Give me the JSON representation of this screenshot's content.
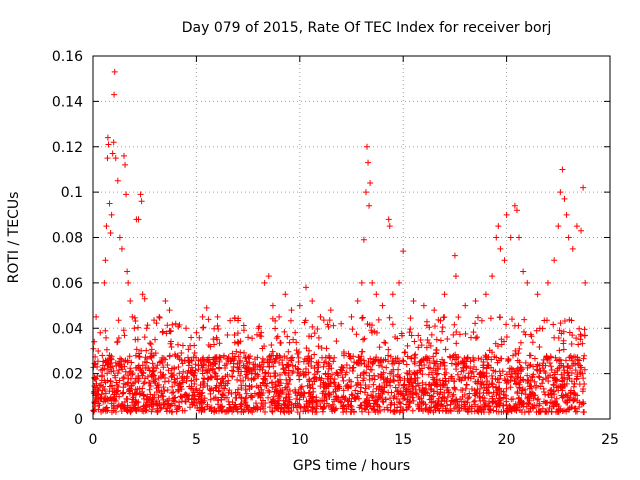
{
  "chart_data": {
    "type": "scatter",
    "title": "Day 079 of 2015, Rate Of TEC Index for receiver borj",
    "xlabel": "GPS time / hours",
    "ylabel": "ROTI / TECUs",
    "xlim": [
      0,
      25
    ],
    "ylim": [
      0,
      0.16
    ],
    "grid": true,
    "marker": "plus",
    "color": "#ff0000",
    "x_ticks": [
      "0",
      "5",
      "10",
      "15",
      "20",
      "25"
    ],
    "y_ticks": [
      "0",
      "0.02",
      "0.04",
      "0.06",
      "0.08",
      "0.1",
      "0.12",
      "0.14",
      "0.16"
    ],
    "series": [
      {
        "name": "ROTI",
        "points": [
          [
            0.05,
            0.012
          ],
          [
            0.15,
            0.045
          ],
          [
            0.25,
            0.03
          ],
          [
            0.35,
            0.038
          ],
          [
            0.45,
            0.028
          ],
          [
            0.55,
            0.06
          ],
          [
            0.6,
            0.07
          ],
          [
            0.65,
            0.085
          ],
          [
            0.7,
            0.115
          ],
          [
            0.72,
            0.124
          ],
          [
            0.75,
            0.121
          ],
          [
            0.8,
            0.095
          ],
          [
            0.85,
            0.082
          ],
          [
            0.9,
            0.09
          ],
          [
            0.95,
            0.117
          ],
          [
            1.0,
            0.122
          ],
          [
            1.02,
            0.143
          ],
          [
            1.05,
            0.153
          ],
          [
            1.1,
            0.115
          ],
          [
            1.2,
            0.105
          ],
          [
            1.3,
            0.08
          ],
          [
            1.4,
            0.075
          ],
          [
            1.5,
            0.116
          ],
          [
            1.55,
            0.112
          ],
          [
            1.6,
            0.099
          ],
          [
            1.65,
            0.065
          ],
          [
            1.7,
            0.06
          ],
          [
            1.8,
            0.052
          ],
          [
            1.9,
            0.045
          ],
          [
            2.0,
            0.04
          ],
          [
            2.1,
            0.088
          ],
          [
            2.2,
            0.088
          ],
          [
            2.3,
            0.099
          ],
          [
            2.35,
            0.096
          ],
          [
            2.4,
            0.055
          ],
          [
            2.5,
            0.053
          ],
          [
            2.6,
            0.04
          ],
          [
            2.8,
            0.033
          ],
          [
            3.0,
            0.035
          ],
          [
            3.2,
            0.045
          ],
          [
            3.5,
            0.052
          ],
          [
            3.7,
            0.048
          ],
          [
            4.0,
            0.042
          ],
          [
            4.5,
            0.04
          ],
          [
            5.0,
            0.038
          ],
          [
            5.3,
            0.045
          ],
          [
            5.5,
            0.049
          ],
          [
            6.0,
            0.035
          ],
          [
            6.5,
            0.037
          ],
          [
            7.0,
            0.034
          ],
          [
            7.5,
            0.036
          ],
          [
            8.0,
            0.04
          ],
          [
            8.3,
            0.06
          ],
          [
            8.5,
            0.063
          ],
          [
            8.7,
            0.05
          ],
          [
            9.0,
            0.045
          ],
          [
            9.3,
            0.055
          ],
          [
            9.6,
            0.048
          ],
          [
            10.0,
            0.05
          ],
          [
            10.3,
            0.058
          ],
          [
            10.6,
            0.052
          ],
          [
            11.0,
            0.045
          ],
          [
            11.5,
            0.048
          ],
          [
            12.0,
            0.042
          ],
          [
            12.5,
            0.045
          ],
          [
            12.8,
            0.052
          ],
          [
            13.0,
            0.06
          ],
          [
            13.1,
            0.079
          ],
          [
            13.2,
            0.1
          ],
          [
            13.25,
            0.12
          ],
          [
            13.3,
            0.113
          ],
          [
            13.35,
            0.094
          ],
          [
            13.4,
            0.104
          ],
          [
            13.5,
            0.06
          ],
          [
            13.7,
            0.055
          ],
          [
            14.0,
            0.05
          ],
          [
            14.3,
            0.088
          ],
          [
            14.35,
            0.085
          ],
          [
            14.5,
            0.055
          ],
          [
            14.8,
            0.06
          ],
          [
            15.0,
            0.074
          ],
          [
            15.5,
            0.052
          ],
          [
            16.0,
            0.05
          ],
          [
            16.5,
            0.048
          ],
          [
            17.0,
            0.055
          ],
          [
            17.5,
            0.072
          ],
          [
            17.55,
            0.063
          ],
          [
            18.0,
            0.05
          ],
          [
            18.5,
            0.052
          ],
          [
            19.0,
            0.055
          ],
          [
            19.3,
            0.063
          ],
          [
            19.5,
            0.08
          ],
          [
            19.6,
            0.085
          ],
          [
            19.7,
            0.075
          ],
          [
            19.9,
            0.07
          ],
          [
            20.0,
            0.09
          ],
          [
            20.2,
            0.08
          ],
          [
            20.4,
            0.094
          ],
          [
            20.5,
            0.092
          ],
          [
            20.6,
            0.08
          ],
          [
            20.8,
            0.065
          ],
          [
            21.0,
            0.06
          ],
          [
            21.5,
            0.055
          ],
          [
            22.0,
            0.06
          ],
          [
            22.3,
            0.07
          ],
          [
            22.5,
            0.085
          ],
          [
            22.6,
            0.1
          ],
          [
            22.7,
            0.11
          ],
          [
            22.8,
            0.097
          ],
          [
            22.9,
            0.09
          ],
          [
            23.0,
            0.08
          ],
          [
            23.2,
            0.075
          ],
          [
            23.4,
            0.085
          ],
          [
            23.6,
            0.083
          ],
          [
            23.7,
            0.102
          ],
          [
            23.8,
            0.06
          ]
        ]
      }
    ],
    "dense_band": {
      "x_range": [
        0,
        23.8
      ],
      "typical_min": 0.003,
      "typical_max": 0.045,
      "bulk_center": 0.015
    }
  }
}
